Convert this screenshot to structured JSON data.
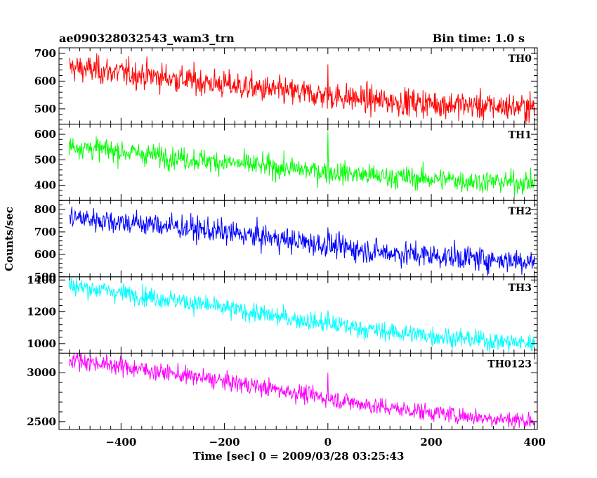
{
  "header": {
    "title": "ae090328032543_wam3_trn",
    "bin_time": "Bin time: 1.0 s"
  },
  "chart_data": {
    "type": "line",
    "xlabel": "Time [sec] 0 = 2009/03/28 03:25:43",
    "ylabel": "Counts/sec",
    "xlim": [
      -520,
      405
    ],
    "x_ticks": [
      -400,
      -200,
      0,
      200,
      400
    ],
    "x_tick_labels": [
      "−400",
      "−200",
      "0",
      "200",
      "400"
    ],
    "bin_time_s": 1.0,
    "grid": false,
    "panels": [
      {
        "name": "TH0",
        "color": "#ff0000",
        "ylim": [
          445,
          720
        ],
        "yticks": [
          500,
          600,
          700
        ],
        "trend": {
          "x": [
            -500,
            -300,
            -100,
            100,
            300,
            400
          ],
          "y": [
            650,
            610,
            565,
            530,
            510,
            505
          ]
        },
        "noise_sigma": 25,
        "spike": {
          "x": 0,
          "y": 660
        }
      },
      {
        "name": "TH1",
        "color": "#00ff00",
        "ylim": [
          340,
          640
        ],
        "yticks": [
          400,
          500,
          600
        ],
        "trend": {
          "x": [
            -500,
            -300,
            -100,
            100,
            300,
            400
          ],
          "y": [
            555,
            510,
            470,
            435,
            415,
            410
          ]
        },
        "noise_sigma": 22,
        "spike": {
          "x": 0,
          "y": 610
        }
      },
      {
        "name": "TH2",
        "color": "#0000ff",
        "ylim": [
          500,
          840
        ],
        "yticks": [
          500,
          600,
          700,
          800
        ],
        "trend": {
          "x": [
            -500,
            -300,
            -100,
            100,
            300,
            400
          ],
          "y": [
            765,
            725,
            670,
            610,
            580,
            570
          ]
        },
        "noise_sigma": 27,
        "spike": {
          "x": 0,
          "y": 720
        }
      },
      {
        "name": "TH3",
        "color": "#00ffff",
        "ylin": null,
        "ylim": [
          940,
          1420
        ],
        "yticks": [
          1000,
          1200,
          1400
        ],
        "trend": {
          "x": [
            -500,
            -300,
            -100,
            100,
            300,
            400
          ],
          "y": [
            1365,
            1275,
            1170,
            1080,
            1020,
            1000
          ]
        },
        "noise_sigma": 30,
        "spike": {
          "x": 0,
          "y": 1210
        }
      },
      {
        "name": "TH0123",
        "color": "#ff00ff",
        "ylim": [
          2420,
          3200
        ],
        "yticks": [
          2500,
          3000
        ],
        "trend": {
          "x": [
            -500,
            -300,
            -100,
            100,
            300,
            400
          ],
          "y": [
            3140,
            2990,
            2830,
            2650,
            2540,
            2510
          ]
        },
        "noise_sigma": 45,
        "spike": {
          "x": 0,
          "y": 3000
        }
      }
    ]
  }
}
